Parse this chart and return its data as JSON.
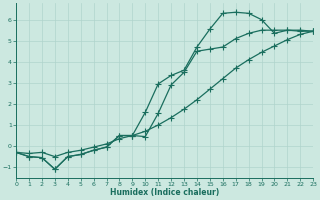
{
  "xlabel": "Humidex (Indice chaleur)",
  "bg_color": "#cce8e0",
  "grid_color": "#b0d4cc",
  "line_color": "#1a6e5e",
  "xlim": [
    0,
    23
  ],
  "ylim": [
    -1.5,
    6.8
  ],
  "yticks": [
    -1,
    0,
    1,
    2,
    3,
    4,
    5,
    6
  ],
  "xticks": [
    0,
    1,
    2,
    3,
    4,
    5,
    6,
    7,
    8,
    9,
    10,
    11,
    12,
    13,
    14,
    15,
    16,
    17,
    18,
    19,
    20,
    21,
    22,
    23
  ],
  "curve1_x": [
    0,
    1,
    2,
    3,
    4,
    5,
    6,
    7,
    8,
    9,
    10,
    11,
    12,
    13,
    14,
    15,
    16,
    17,
    18,
    19,
    20,
    21,
    22,
    23
  ],
  "curve1_y": [
    -0.3,
    -0.5,
    -0.55,
    -1.1,
    -0.5,
    -0.4,
    -0.2,
    -0.05,
    0.5,
    0.5,
    1.6,
    2.95,
    3.35,
    3.6,
    4.7,
    5.55,
    6.3,
    6.35,
    6.3,
    6.0,
    5.35,
    5.5,
    5.5,
    5.45
  ],
  "curve2_x": [
    0,
    1,
    2,
    3,
    4,
    5,
    6,
    7,
    8,
    9,
    10,
    11,
    12,
    13,
    14,
    15,
    16,
    17,
    18,
    19,
    20,
    21,
    22,
    23
  ],
  "curve2_y": [
    -0.3,
    -0.5,
    -0.55,
    -1.1,
    -0.5,
    -0.4,
    -0.2,
    -0.05,
    0.5,
    0.5,
    0.45,
    1.55,
    2.9,
    3.5,
    4.5,
    4.6,
    4.7,
    5.1,
    5.35,
    5.5,
    5.5,
    5.5,
    5.45,
    5.45
  ],
  "curve3_x": [
    0,
    1,
    2,
    3,
    4,
    5,
    6,
    7,
    8,
    9,
    10,
    11,
    12,
    13,
    14,
    15,
    16,
    17,
    18,
    19,
    20,
    21,
    22,
    23
  ],
  "curve3_y": [
    -0.3,
    -0.35,
    -0.3,
    -0.5,
    -0.3,
    -0.2,
    -0.05,
    0.1,
    0.35,
    0.5,
    0.7,
    1.0,
    1.35,
    1.75,
    2.2,
    2.7,
    3.2,
    3.7,
    4.1,
    4.45,
    4.75,
    5.05,
    5.3,
    5.45
  ],
  "marker": "+",
  "markersize": 4,
  "linewidth": 0.9
}
